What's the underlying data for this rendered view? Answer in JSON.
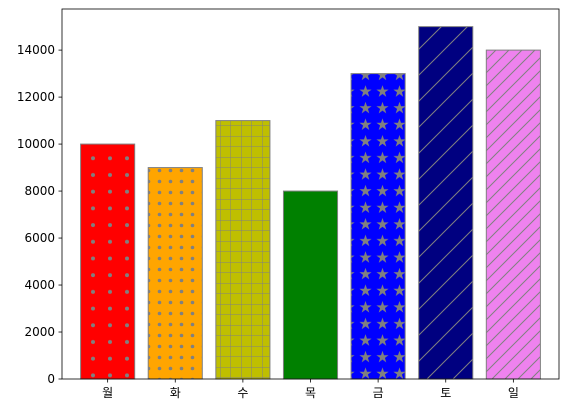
{
  "chart_data": {
    "type": "bar",
    "categories": [
      "월",
      "화",
      "수",
      "목",
      "금",
      "토",
      "일"
    ],
    "values": [
      10000,
      9000,
      11000,
      8000,
      13000,
      15000,
      14000
    ],
    "title": "",
    "xlabel": "",
    "ylabel": "",
    "ylim": [
      0,
      15750
    ],
    "yticks": [
      0,
      2000,
      4000,
      6000,
      8000,
      10000,
      12000,
      14000
    ],
    "grid": false,
    "legend": "none",
    "bar_colors": [
      "#ff0000",
      "#ffa500",
      "#bfbf00",
      "#008000",
      "#0000ff",
      "#000080",
      "#ee82ee"
    ],
    "bar_patterns": [
      "dots-sparse",
      "dots-dense",
      "grid",
      "none",
      "stars",
      "diagonal-wide",
      "diagonal-dense"
    ],
    "edge_color": "#808080"
  }
}
